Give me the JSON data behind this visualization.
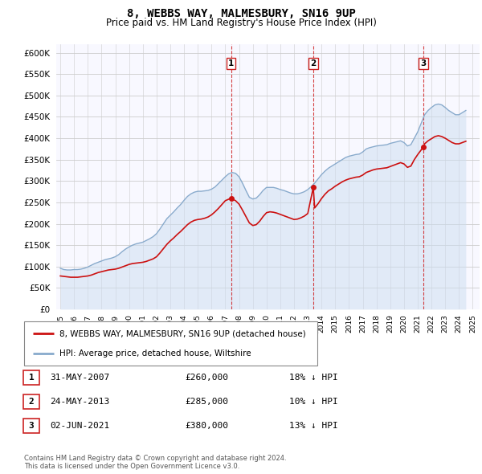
{
  "title": "8, WEBBS WAY, MALMESBURY, SN16 9UP",
  "subtitle": "Price paid vs. HM Land Registry's House Price Index (HPI)",
  "title_fontsize": 10,
  "subtitle_fontsize": 8.5,
  "ylim": [
    0,
    620000
  ],
  "yticks": [
    0,
    50000,
    100000,
    150000,
    200000,
    250000,
    300000,
    350000,
    400000,
    450000,
    500000,
    550000,
    600000
  ],
  "xlim_start": 1994.7,
  "xlim_end": 2025.5,
  "background_color": "#ffffff",
  "plot_bg_color": "#f8f8ff",
  "grid_color": "#cccccc",
  "hpi_line_color": "#88aacc",
  "price_color": "#cc1111",
  "shade_color": "#ccddf0",
  "transaction_line_color": "#cc1111",
  "transactions": [
    {
      "num": 1,
      "date": "31-MAY-2007",
      "price": 260000,
      "pct": "18%",
      "x": 2007.42
    },
    {
      "num": 2,
      "date": "24-MAY-2013",
      "price": 285000,
      "pct": "10%",
      "x": 2013.4
    },
    {
      "num": 3,
      "date": "02-JUN-2021",
      "price": 380000,
      "pct": "13%",
      "x": 2021.42
    }
  ],
  "legend_entries": [
    "8, WEBBS WAY, MALMESBURY, SN16 9UP (detached house)",
    "HPI: Average price, detached house, Wiltshire"
  ],
  "footnote1": "Contains HM Land Registry data © Crown copyright and database right 2024.",
  "footnote2": "This data is licensed under the Open Government Licence v3.0.",
  "hpi_data_x": [
    1995.0,
    1995.25,
    1995.5,
    1995.75,
    1996.0,
    1996.25,
    1996.5,
    1996.75,
    1997.0,
    1997.25,
    1997.5,
    1997.75,
    1998.0,
    1998.25,
    1998.5,
    1998.75,
    1999.0,
    1999.25,
    1999.5,
    1999.75,
    2000.0,
    2000.25,
    2000.5,
    2000.75,
    2001.0,
    2001.25,
    2001.5,
    2001.75,
    2002.0,
    2002.25,
    2002.5,
    2002.75,
    2003.0,
    2003.25,
    2003.5,
    2003.75,
    2004.0,
    2004.25,
    2004.5,
    2004.75,
    2005.0,
    2005.25,
    2005.5,
    2005.75,
    2006.0,
    2006.25,
    2006.5,
    2006.75,
    2007.0,
    2007.25,
    2007.5,
    2007.75,
    2008.0,
    2008.25,
    2008.5,
    2008.75,
    2009.0,
    2009.25,
    2009.5,
    2009.75,
    2010.0,
    2010.25,
    2010.5,
    2010.75,
    2011.0,
    2011.25,
    2011.5,
    2011.75,
    2012.0,
    2012.25,
    2012.5,
    2012.75,
    2013.0,
    2013.25,
    2013.5,
    2013.75,
    2014.0,
    2014.25,
    2014.5,
    2014.75,
    2015.0,
    2015.25,
    2015.5,
    2015.75,
    2016.0,
    2016.25,
    2016.5,
    2016.75,
    2017.0,
    2017.25,
    2017.5,
    2017.75,
    2018.0,
    2018.25,
    2018.5,
    2018.75,
    2019.0,
    2019.25,
    2019.5,
    2019.75,
    2020.0,
    2020.25,
    2020.5,
    2020.75,
    2021.0,
    2021.25,
    2021.5,
    2021.75,
    2022.0,
    2022.25,
    2022.5,
    2022.75,
    2023.0,
    2023.25,
    2023.5,
    2023.75,
    2024.0,
    2024.25,
    2024.5
  ],
  "hpi_data_y": [
    96000,
    93000,
    92000,
    92000,
    93000,
    93000,
    94000,
    96000,
    99000,
    103000,
    107000,
    110000,
    113000,
    116000,
    118000,
    120000,
    123000,
    128000,
    135000,
    141000,
    146000,
    150000,
    153000,
    155000,
    157000,
    161000,
    165000,
    170000,
    177000,
    188000,
    200000,
    212000,
    220000,
    228000,
    237000,
    245000,
    255000,
    264000,
    270000,
    274000,
    276000,
    276000,
    277000,
    278000,
    281000,
    286000,
    294000,
    302000,
    310000,
    317000,
    320000,
    318000,
    310000,
    295000,
    278000,
    262000,
    258000,
    260000,
    268000,
    278000,
    285000,
    285000,
    285000,
    283000,
    280000,
    278000,
    275000,
    272000,
    270000,
    270000,
    272000,
    275000,
    280000,
    287000,
    295000,
    305000,
    315000,
    323000,
    330000,
    335000,
    340000,
    345000,
    350000,
    355000,
    358000,
    360000,
    362000,
    363000,
    368000,
    375000,
    378000,
    380000,
    382000,
    383000,
    384000,
    385000,
    388000,
    390000,
    392000,
    394000,
    390000,
    382000,
    385000,
    400000,
    415000,
    435000,
    455000,
    465000,
    472000,
    478000,
    480000,
    478000,
    472000,
    465000,
    460000,
    455000,
    455000,
    460000,
    465000
  ],
  "price_data_x": [
    1995.0,
    1995.25,
    1995.5,
    1995.75,
    1996.0,
    1996.25,
    1996.5,
    1996.75,
    1997.0,
    1997.25,
    1997.5,
    1997.75,
    1998.0,
    1998.25,
    1998.5,
    1998.75,
    1999.0,
    1999.25,
    1999.5,
    1999.75,
    2000.0,
    2000.25,
    2000.5,
    2000.75,
    2001.0,
    2001.25,
    2001.5,
    2001.75,
    2002.0,
    2002.25,
    2002.5,
    2002.75,
    2003.0,
    2003.25,
    2003.5,
    2003.75,
    2004.0,
    2004.25,
    2004.5,
    2004.75,
    2005.0,
    2005.25,
    2005.5,
    2005.75,
    2006.0,
    2006.25,
    2006.5,
    2006.75,
    2007.0,
    2007.42,
    2007.5,
    2007.75,
    2008.0,
    2008.25,
    2008.5,
    2008.75,
    2009.0,
    2009.25,
    2009.5,
    2009.75,
    2010.0,
    2010.25,
    2010.5,
    2010.75,
    2011.0,
    2011.25,
    2011.5,
    2011.75,
    2012.0,
    2012.25,
    2012.5,
    2012.75,
    2013.0,
    2013.4,
    2013.5,
    2013.75,
    2014.0,
    2014.25,
    2014.5,
    2014.75,
    2015.0,
    2015.25,
    2015.5,
    2015.75,
    2016.0,
    2016.25,
    2016.5,
    2016.75,
    2017.0,
    2017.25,
    2017.5,
    2017.75,
    2018.0,
    2018.25,
    2018.5,
    2018.75,
    2019.0,
    2019.25,
    2019.5,
    2019.75,
    2020.0,
    2020.25,
    2020.5,
    2020.75,
    2021.0,
    2021.42,
    2021.5,
    2021.75,
    2022.0,
    2022.25,
    2022.5,
    2022.75,
    2023.0,
    2023.25,
    2023.5,
    2023.75,
    2024.0,
    2024.25,
    2024.5
  ],
  "price_data_y": [
    78000,
    77000,
    76000,
    75000,
    75000,
    75000,
    76000,
    77000,
    78000,
    80000,
    83000,
    86000,
    88000,
    90000,
    92000,
    93000,
    94000,
    96000,
    99000,
    102000,
    105000,
    107000,
    108000,
    109000,
    110000,
    112000,
    115000,
    118000,
    123000,
    132000,
    142000,
    152000,
    160000,
    167000,
    175000,
    182000,
    190000,
    198000,
    204000,
    208000,
    210000,
    211000,
    213000,
    216000,
    221000,
    228000,
    236000,
    245000,
    254000,
    260000,
    258000,
    254000,
    246000,
    232000,
    217000,
    202000,
    196000,
    198000,
    206000,
    217000,
    226000,
    228000,
    227000,
    225000,
    222000,
    219000,
    216000,
    213000,
    210000,
    211000,
    214000,
    218000,
    224000,
    285000,
    237000,
    247000,
    259000,
    269000,
    277000,
    282000,
    288000,
    293000,
    298000,
    302000,
    305000,
    307000,
    309000,
    310000,
    314000,
    320000,
    323000,
    326000,
    328000,
    329000,
    330000,
    331000,
    334000,
    337000,
    340000,
    343000,
    340000,
    332000,
    335000,
    350000,
    362000,
    380000,
    387000,
    394000,
    399000,
    404000,
    406000,
    404000,
    400000,
    395000,
    390000,
    387000,
    387000,
    390000,
    393000
  ]
}
